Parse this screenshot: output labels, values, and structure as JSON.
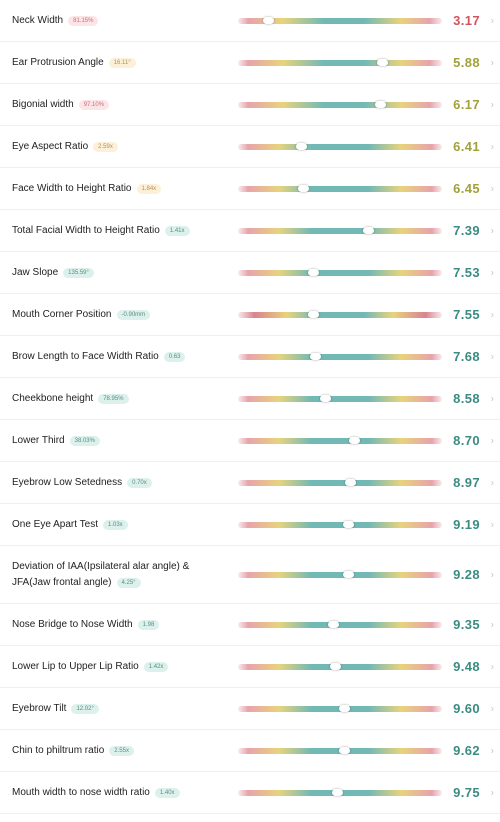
{
  "colors": {
    "score_red": "#d3545d",
    "score_yellow": "#a2a13a",
    "score_green": "#3a8c82",
    "bar_teal": "#72b9b5",
    "bar_yellow": "#e8d37c",
    "bar_pink": "#e7a3ab"
  },
  "metrics": [
    {
      "name": "Neck Width",
      "badge": "81.15%",
      "badge_tone": "red",
      "score": "3.17",
      "score_tone": "red",
      "bar": "peak-right",
      "marker": 0.15
    },
    {
      "name": "Ear Protrusion Angle",
      "badge": "16.11°",
      "badge_tone": "yellow",
      "score": "5.88",
      "score_tone": "yellow",
      "bar": "peak-right",
      "marker": 0.71
    },
    {
      "name": "Bigonial width",
      "badge": "97.10%",
      "badge_tone": "red",
      "score": "6.17",
      "score_tone": "yellow",
      "bar": "peak-right",
      "marker": 0.7
    },
    {
      "name": "Eye Aspect Ratio",
      "badge": "2.59x",
      "badge_tone": "yellow",
      "score": "6.41",
      "score_tone": "yellow",
      "bar": "peak-center",
      "marker": 0.31
    },
    {
      "name": "Face Width to Height Ratio",
      "badge": "1.84x",
      "badge_tone": "yellow",
      "score": "6.45",
      "score_tone": "yellow",
      "bar": "peak-center",
      "marker": 0.32
    },
    {
      "name": "Total Facial Width to Height Ratio",
      "badge": "1.41x",
      "badge_tone": "green",
      "score": "7.39",
      "score_tone": "green",
      "bar": "peak-center",
      "marker": 0.64
    },
    {
      "name": "Jaw Slope",
      "badge": "135.59°",
      "badge_tone": "green",
      "score": "7.53",
      "score_tone": "green",
      "bar": "peak-center",
      "marker": 0.37
    },
    {
      "name": "Mouth Corner Position",
      "badge": "-0.90mm",
      "badge_tone": "green",
      "score": "7.55",
      "score_tone": "green",
      "bar": "peak-center-red",
      "marker": 0.37
    },
    {
      "name": "Brow Length to Face Width Ratio",
      "badge": "0.63",
      "badge_tone": "green",
      "score": "7.68",
      "score_tone": "green",
      "bar": "peak-center",
      "marker": 0.38
    },
    {
      "name": "Cheekbone height",
      "badge": "78.95%",
      "badge_tone": "green",
      "score": "8.58",
      "score_tone": "green",
      "bar": "peak-center",
      "marker": 0.43
    },
    {
      "name": "Lower Third",
      "badge": "38.03%",
      "badge_tone": "green",
      "score": "8.70",
      "score_tone": "green",
      "bar": "peak-center",
      "marker": 0.57
    },
    {
      "name": "Eyebrow Low Setedness",
      "badge": "0.70x",
      "badge_tone": "green",
      "score": "8.97",
      "score_tone": "green",
      "bar": "peak-center",
      "marker": 0.55
    },
    {
      "name": "One Eye Apart Test",
      "badge": "1.03x",
      "badge_tone": "green",
      "score": "9.19",
      "score_tone": "green",
      "bar": "peak-center",
      "marker": 0.54
    },
    {
      "name": "Deviation of IAA(Ipsilateral alar angle) & JFA(Jaw frontal angle)",
      "badge": "4.25°",
      "badge_tone": "green",
      "score": "9.28",
      "score_tone": "green",
      "bar": "peak-center",
      "marker": 0.54,
      "tall": true
    },
    {
      "name": "Nose Bridge to Nose Width",
      "badge": "1.98",
      "badge_tone": "green",
      "score": "9.35",
      "score_tone": "green",
      "bar": "peak-center",
      "marker": 0.47
    },
    {
      "name": "Lower Lip to Upper Lip Ratio",
      "badge": "1.42x",
      "badge_tone": "green",
      "score": "9.48",
      "score_tone": "green",
      "bar": "peak-center",
      "marker": 0.48
    },
    {
      "name": "Eyebrow Tilt",
      "badge": "12.02°",
      "badge_tone": "green",
      "score": "9.60",
      "score_tone": "green",
      "bar": "peak-center",
      "marker": 0.52
    },
    {
      "name": "Chin to philtrum ratio",
      "badge": "2.55x",
      "badge_tone": "green",
      "score": "9.62",
      "score_tone": "green",
      "bar": "peak-center",
      "marker": 0.52
    },
    {
      "name": "Mouth width to nose width ratio",
      "badge": "1.40x",
      "badge_tone": "green",
      "score": "9.75",
      "score_tone": "green",
      "bar": "peak-center",
      "marker": 0.49
    }
  ]
}
